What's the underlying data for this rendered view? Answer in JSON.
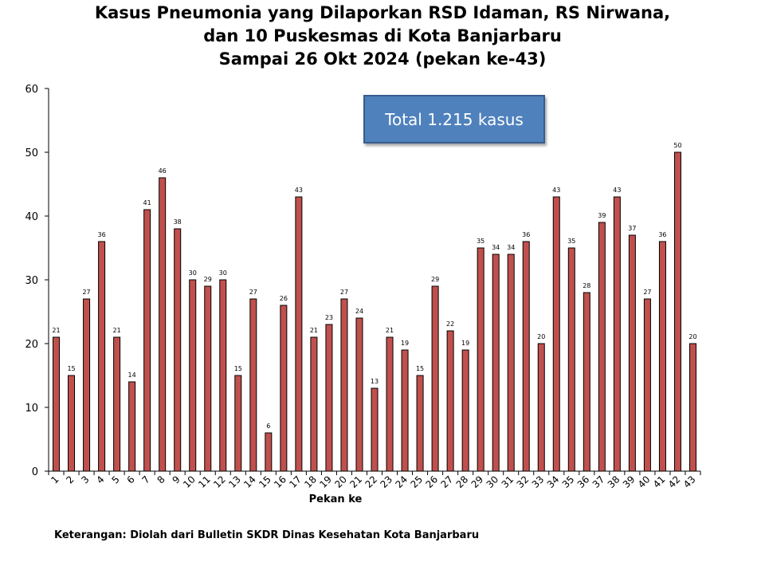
{
  "chart_data": {
    "type": "bar",
    "title": [
      "Kasus Pneumonia yang Dilaporkan RSD Idaman, RS Nirwana,",
      "dan 10 Puskesmas di Kota Banjarbaru",
      "Sampai 26 Okt 2024 (pekan ke-43)"
    ],
    "xlabel": "Pekan ke",
    "ylabel": "",
    "ylim": [
      0,
      60
    ],
    "yticks": [
      0,
      10,
      20,
      30,
      40,
      50,
      60
    ],
    "categories": [
      "1",
      "2",
      "3",
      "4",
      "5",
      "6",
      "7",
      "8",
      "9",
      "10",
      "11",
      "12",
      "13",
      "14",
      "15",
      "16",
      "17",
      "18",
      "19",
      "20",
      "21",
      "22",
      "23",
      "24",
      "25",
      "26",
      "27",
      "28",
      "29",
      "30",
      "31",
      "32",
      "33",
      "34",
      "35",
      "36",
      "37",
      "38",
      "39",
      "40",
      "41",
      "42",
      "43"
    ],
    "values": [
      21,
      15,
      27,
      36,
      21,
      14,
      41,
      46,
      38,
      30,
      29,
      30,
      15,
      27,
      6,
      26,
      43,
      21,
      23,
      27,
      24,
      13,
      21,
      19,
      15,
      29,
      22,
      19,
      35,
      34,
      34,
      36,
      20,
      43,
      35,
      28,
      39,
      43,
      37,
      27,
      36,
      50,
      20
    ],
    "data_labels": true,
    "grid": false,
    "bar_color": "#c0504d",
    "bar_edge_color": "#000000"
  },
  "callout": {
    "text": "Total 1.215 kasus",
    "bg_color": "#4f81bd"
  },
  "note": "Keterangan: Diolah dari Bulletin SKDR Dinas Kesehatan Kota Banjarbaru"
}
